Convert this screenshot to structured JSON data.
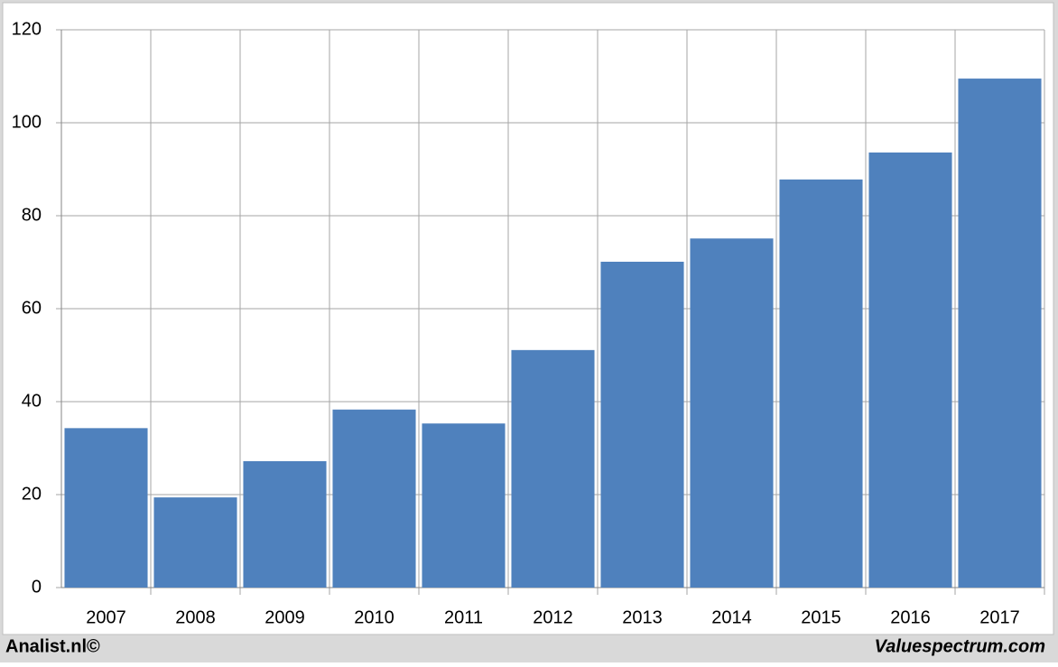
{
  "chart_data": {
    "type": "bar",
    "categories": [
      "2007",
      "2008",
      "2009",
      "2010",
      "2011",
      "2012",
      "2013",
      "2014",
      "2015",
      "2016",
      "2017"
    ],
    "values": [
      34.3,
      19.4,
      27.2,
      38.3,
      35.3,
      51.1,
      70.1,
      75.1,
      87.8,
      93.6,
      109.5
    ],
    "color": "#4f81bd",
    "ylim": [
      0,
      120
    ],
    "yticks": [
      0,
      20,
      40,
      60,
      80,
      100,
      120
    ],
    "grid": true
  },
  "footer": {
    "left": "Analist.nl©",
    "right": "Valuespectrum.com"
  }
}
